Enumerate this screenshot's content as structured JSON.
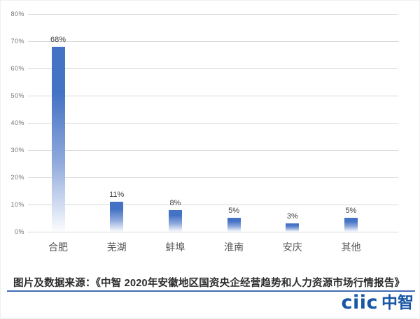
{
  "chart_data": {
    "type": "bar",
    "title": "",
    "categories": [
      "合肥",
      "芜湖",
      "蚌埠",
      "淮南",
      "安庆",
      "其他"
    ],
    "values": [
      68,
      11,
      8,
      5,
      3,
      5
    ],
    "data_labels": [
      "68%",
      "11%",
      "8%",
      "5%",
      "3%",
      "5%"
    ],
    "xlabel": "",
    "ylabel": "",
    "ylim": [
      0,
      80
    ],
    "ytick_step": 10,
    "ytick_labels": [
      "0%",
      "10%",
      "20%",
      "30%",
      "40%",
      "50%",
      "60%",
      "70%",
      "80%"
    ],
    "grid": true,
    "legend": "none",
    "bar_color_top": "#4472C4",
    "bar_color_bottom": "#FBFCFE",
    "gridline_color": "#D9D9D9",
    "axis_line_color": "#D3D8E0",
    "tick_label_color": "#737373",
    "category_label_color": "#595959",
    "data_label_color": "#3F3F3F"
  },
  "footer": {
    "source_text": "图片及数据来源：《中智 2020年安徽地区国资央企经营趋势和人力资源市场行情报告》",
    "divider_color": "#3E6DB5"
  },
  "logo": {
    "latin": "ciic",
    "cjk": "中智",
    "color": "#1857A6"
  }
}
